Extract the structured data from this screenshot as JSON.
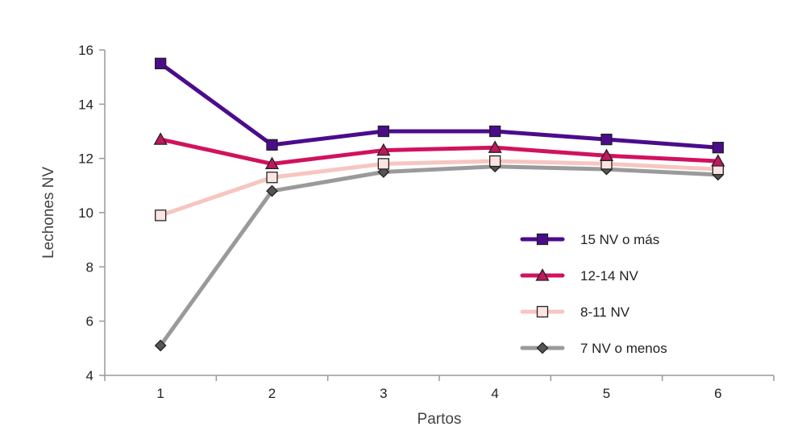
{
  "chart_data": {
    "type": "line",
    "title": "",
    "xlabel": "Partos",
    "ylabel": "Lechones NV",
    "x": [
      1,
      2,
      3,
      4,
      5,
      6
    ],
    "ylim": [
      4,
      16
    ],
    "yticks": [
      4,
      6,
      8,
      10,
      12,
      14,
      16
    ],
    "grid": false,
    "legend_position": "right",
    "series": [
      {
        "name": "15 NV o más",
        "values": [
          15.5,
          12.5,
          13.0,
          13.0,
          12.7,
          12.4
        ],
        "color": "#4b0c8c",
        "marker": "square",
        "marker_fill": "#4b0c8c"
      },
      {
        "name": "12-14 NV",
        "values": [
          12.7,
          11.8,
          12.3,
          12.4,
          12.1,
          11.9
        ],
        "color": "#d1125e",
        "marker": "triangle",
        "marker_fill": "#c1175e"
      },
      {
        "name": "8-11 NV",
        "values": [
          9.9,
          11.3,
          11.8,
          11.9,
          11.8,
          11.6
        ],
        "color": "#f7c6c0",
        "marker": "square",
        "marker_fill": "#fce4e2"
      },
      {
        "name": "7 NV o menos",
        "values": [
          5.1,
          10.8,
          11.5,
          11.7,
          11.6,
          11.4
        ],
        "color": "#9a9a9a",
        "marker": "diamond",
        "marker_fill": "#555555"
      }
    ]
  }
}
